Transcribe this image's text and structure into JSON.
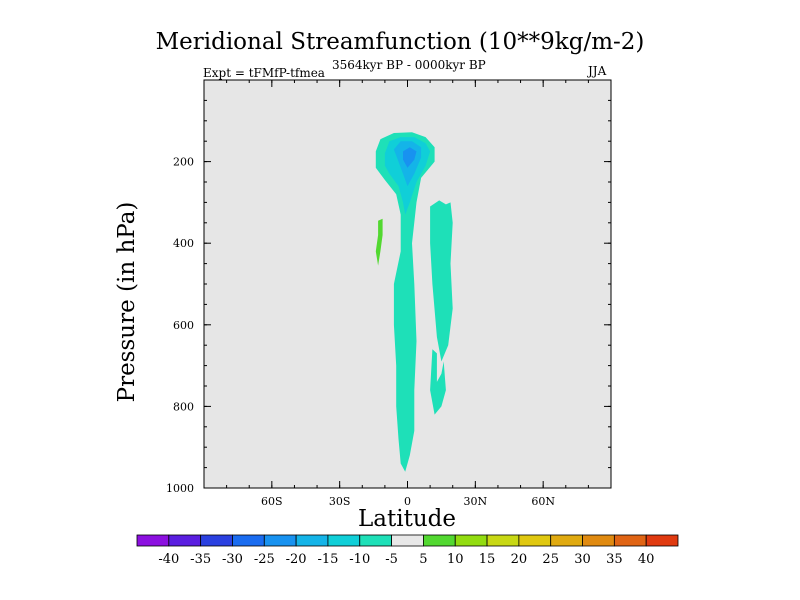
{
  "chart_data": {
    "type": "contour",
    "title": "Meridional Streamfunction (10**9kg/m-2)",
    "subtitle_left": "Expt = tFMfP-tfmea",
    "subtitle_center": "3564kyr BP - 0000kyr BP",
    "subtitle_right": "JJA",
    "xlabel": "Latitude",
    "ylabel": "Pressure (in hPa)",
    "xlim": [
      -90,
      90
    ],
    "ylim": [
      1000,
      0
    ],
    "x_ticks": [
      {
        "value": -60,
        "label": "60S"
      },
      {
        "value": -30,
        "label": "30S"
      },
      {
        "value": 0,
        "label": "0"
      },
      {
        "value": 30,
        "label": "30N"
      },
      {
        "value": 60,
        "label": "60N"
      }
    ],
    "y_ticks": [
      200,
      400,
      600,
      800,
      1000
    ],
    "colorbar": {
      "levels": [
        -40,
        -35,
        -30,
        -25,
        -20,
        -15,
        -10,
        -5,
        5,
        10,
        15,
        20,
        25,
        30,
        35,
        40
      ],
      "colors": [
        "#8c10e0",
        "#5a1ee0",
        "#2a40e0",
        "#1a6cf0",
        "#1892f0",
        "#14b4e8",
        "#10cfd8",
        "#1ee0b8",
        "#e8e8e8",
        "#52d830",
        "#92dc10",
        "#c8d814",
        "#e0c810",
        "#e0aa10",
        "#e08a10",
        "#e06414",
        "#e03a10"
      ]
    },
    "regions": [
      {
        "name": "negative upper core",
        "value_range": [
          -20,
          -5
        ],
        "lat_range": [
          -14,
          12
        ],
        "p_range": [
          130,
          470
        ]
      },
      {
        "name": "negative column",
        "value_range": [
          -10,
          -5
        ],
        "lat_range": [
          -6,
          4
        ],
        "p_range": [
          470,
          960
        ]
      },
      {
        "name": "negative band 10-20N",
        "value_range": [
          -10,
          -5
        ],
        "lat_range": [
          9,
          20
        ],
        "p_range": [
          300,
          700
        ]
      },
      {
        "name": "negative band near 12N lower",
        "value_range": [
          -10,
          -5
        ],
        "lat_range": [
          10,
          17
        ],
        "p_range": [
          660,
          820
        ]
      },
      {
        "name": "positive cell",
        "value_range": [
          5,
          10
        ],
        "lat_range": [
          -14,
          -10
        ],
        "p_range": [
          340,
          450
        ]
      }
    ]
  }
}
